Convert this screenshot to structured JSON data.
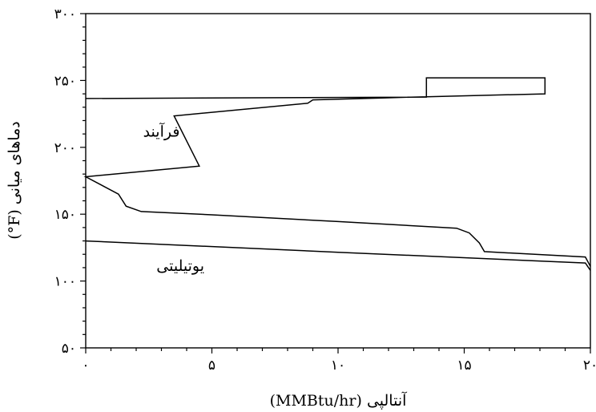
{
  "chart_data": {
    "type": "line",
    "xlabel": "(MMBtu/hr) آنتالپی",
    "ylabel": "(°F) دماهای میانی",
    "xlim": [
      0,
      20
    ],
    "ylim": [
      50,
      300
    ],
    "x_ticks": [
      {
        "value": 0,
        "label": "۰"
      },
      {
        "value": 5,
        "label": "۵"
      },
      {
        "value": 10,
        "label": "۱۰"
      },
      {
        "value": 15,
        "label": "۱۵"
      },
      {
        "value": 20,
        "label": "۲۰"
      }
    ],
    "y_ticks": [
      {
        "value": 50,
        "label": "۵۰"
      },
      {
        "value": 100,
        "label": "۱۰۰"
      },
      {
        "value": 150,
        "label": "۱۵۰"
      },
      {
        "value": 200,
        "label": "۲۰۰"
      },
      {
        "value": 250,
        "label": "۲۵۰"
      },
      {
        "value": 300,
        "label": "۳۰۰"
      }
    ],
    "series": [
      {
        "name": "فرآیند",
        "points": [
          [
            0,
            236.5
          ],
          [
            13.5,
            237.6
          ],
          [
            13.5,
            252
          ],
          [
            18.2,
            252
          ],
          [
            18.2,
            240
          ],
          [
            13.5,
            237.8
          ],
          [
            9,
            235.5
          ],
          [
            8.8,
            233
          ],
          [
            3.5,
            223.5
          ],
          [
            4.5,
            186
          ],
          [
            0,
            178
          ],
          [
            1.3,
            165
          ],
          [
            1.6,
            156
          ],
          [
            2.2,
            152
          ],
          [
            5,
            149.5
          ],
          [
            10,
            144.5
          ],
          [
            14.7,
            139.5
          ],
          [
            15.2,
            136
          ],
          [
            15.6,
            128.5
          ],
          [
            15.8,
            122
          ],
          [
            19.8,
            118
          ],
          [
            20,
            111
          ]
        ]
      },
      {
        "name": "یوتیلیتی",
        "points": [
          [
            0,
            130
          ],
          [
            10,
            121.5
          ],
          [
            19.8,
            113.5
          ],
          [
            20,
            108
          ]
        ]
      }
    ],
    "annotations": [
      {
        "text": "فرآیند",
        "x": 3.0,
        "y": 208
      },
      {
        "text": "یوتیلیتی",
        "x": 3.75,
        "y": 107.5
      }
    ]
  }
}
